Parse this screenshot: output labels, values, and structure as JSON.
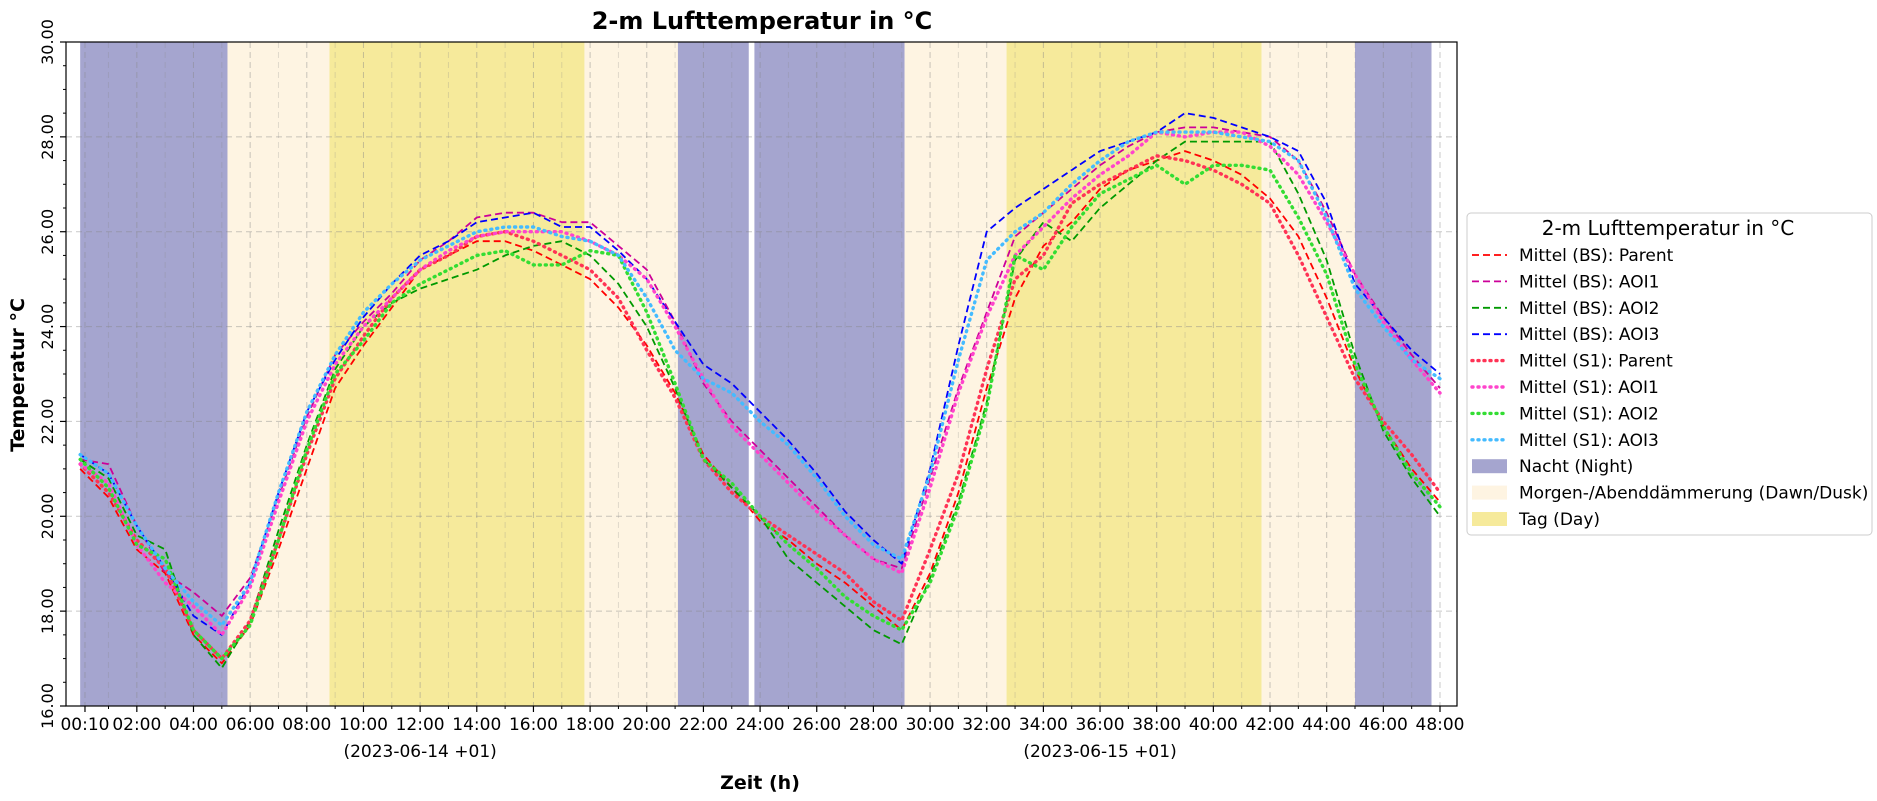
{
  "chart_data": {
    "type": "line",
    "title": "2-m Lufttemperatur in °C",
    "xlabel": "Zeit (h)",
    "ylabel": "Temperatur °C",
    "xlim": [
      -0.5,
      48.6
    ],
    "ylim": [
      16,
      30
    ],
    "y_ticks": [
      "16.00",
      "18.00",
      "20.00",
      "22.00",
      "24.00",
      "26.00",
      "28.00",
      "30.00"
    ],
    "y_tick_values": [
      16,
      18,
      20,
      22,
      24,
      26,
      28,
      30
    ],
    "x_ticks": [
      "00:10",
      "02:00",
      "04:00",
      "06:00",
      "08:00",
      "10:00",
      "12:00",
      "14:00",
      "16:00",
      "18:00",
      "20:00",
      "22:00",
      "24:00",
      "26:00",
      "28:00",
      "30:00",
      "32:00",
      "34:00",
      "36:00",
      "38:00",
      "40:00",
      "42:00",
      "44:00",
      "46:00",
      "48:00"
    ],
    "x_tick_values": [
      0.17,
      2,
      4,
      6,
      8,
      10,
      12,
      14,
      16,
      18,
      20,
      22,
      24,
      26,
      28,
      30,
      32,
      34,
      36,
      38,
      40,
      42,
      44,
      46,
      48
    ],
    "date_labels": [
      {
        "text": "(2023-06-14 +01)",
        "x": 12
      },
      {
        "text": "(2023-06-15 +01)",
        "x": 36
      }
    ],
    "grid": true,
    "legend_position": "right",
    "legend_title": "2-m Lufttemperatur in °C",
    "background_periods": [
      {
        "kind": "night",
        "start": 0,
        "end": 5.2
      },
      {
        "kind": "dawn_dusk",
        "start": 5.2,
        "end": 8.8
      },
      {
        "kind": "day",
        "start": 8.8,
        "end": 17.8
      },
      {
        "kind": "dawn_dusk",
        "start": 17.8,
        "end": 21.1
      },
      {
        "kind": "night",
        "start": 21.1,
        "end": 23.6
      },
      {
        "kind": "night",
        "start": 23.8,
        "end": 29.1
      },
      {
        "kind": "dawn_dusk",
        "start": 29.1,
        "end": 32.7
      },
      {
        "kind": "day",
        "start": 32.7,
        "end": 41.7
      },
      {
        "kind": "dawn_dusk",
        "start": 41.7,
        "end": 45.0
      },
      {
        "kind": "night",
        "start": 45.0,
        "end": 47.7
      }
    ],
    "band_styles": {
      "night": {
        "label": "Nacht (Night)",
        "color": "#4b4b9f",
        "opacity": 0.5
      },
      "dawn_dusk": {
        "label": "Morgen-/Abenddämmerung (Dawn/Dusk)",
        "color": "#fdf0d8",
        "opacity": 0.75
      },
      "day": {
        "label": "Tag (Day)",
        "color": "#f3e37a",
        "opacity": 0.75
      }
    },
    "x": [
      0,
      1,
      2,
      3,
      4,
      5,
      6,
      7,
      8,
      9,
      10,
      11,
      12,
      13,
      14,
      15,
      16,
      17,
      18,
      19,
      20,
      21,
      22,
      23,
      24,
      25,
      26,
      27,
      28,
      29,
      30,
      31,
      32,
      33,
      34,
      35,
      36,
      37,
      38,
      39,
      40,
      41,
      42,
      43,
      44,
      45,
      46,
      47,
      48
    ],
    "series": [
      {
        "name": "Mittel (BS): Parent",
        "color": "#ff0000",
        "style": "dashed",
        "values": [
          21.0,
          20.4,
          19.3,
          18.8,
          17.5,
          16.9,
          17.7,
          19.3,
          21.0,
          22.7,
          23.6,
          24.4,
          25.2,
          25.5,
          25.8,
          25.8,
          25.6,
          25.3,
          25.0,
          24.4,
          23.6,
          22.6,
          21.3,
          20.6,
          19.9,
          19.5,
          19.0,
          18.6,
          18.1,
          17.6,
          18.8,
          20.5,
          22.7,
          24.6,
          25.7,
          26.2,
          26.9,
          27.3,
          27.5,
          27.7,
          27.5,
          27.2,
          26.7,
          25.9,
          24.6,
          23.1,
          21.9,
          21.0,
          20.3
        ]
      },
      {
        "name": "Mittel (BS): AOI1",
        "color": "#cc0099",
        "style": "dashed",
        "values": [
          21.2,
          21.1,
          19.8,
          18.8,
          18.4,
          17.9,
          18.7,
          20.4,
          22.1,
          23.4,
          24.1,
          24.7,
          25.4,
          25.8,
          26.3,
          26.4,
          26.4,
          26.2,
          26.2,
          25.7,
          25.2,
          24.1,
          22.8,
          22.0,
          21.4,
          20.8,
          20.2,
          19.6,
          19.1,
          18.9,
          20.8,
          22.7,
          24.3,
          25.9,
          26.4,
          26.9,
          27.4,
          27.8,
          28.1,
          28.2,
          28.2,
          28.1,
          28.0,
          27.5,
          26.4,
          25.1,
          24.2,
          23.4,
          22.7
        ]
      },
      {
        "name": "Mittel (BS): AOI2",
        "color": "#009900",
        "style": "dashed",
        "values": [
          21.2,
          20.8,
          19.6,
          19.3,
          17.5,
          16.8,
          17.8,
          19.7,
          21.5,
          23.1,
          24.0,
          24.5,
          24.8,
          25.0,
          25.2,
          25.5,
          25.7,
          25.8,
          25.5,
          24.9,
          24.0,
          22.7,
          21.2,
          20.6,
          20.0,
          19.1,
          18.6,
          18.1,
          17.6,
          17.3,
          18.7,
          20.3,
          22.4,
          25.4,
          26.2,
          25.8,
          26.5,
          27.0,
          27.5,
          27.9,
          27.9,
          27.9,
          27.9,
          26.8,
          25.4,
          23.4,
          21.8,
          20.8,
          20.0
        ]
      },
      {
        "name": "Mittel (BS): AOI3",
        "color": "#0000ff",
        "style": "dashed",
        "values": [
          21.3,
          20.9,
          19.8,
          18.9,
          17.9,
          17.5,
          18.6,
          20.5,
          22.2,
          23.3,
          24.2,
          24.9,
          25.5,
          25.8,
          26.2,
          26.3,
          26.4,
          26.1,
          26.1,
          25.6,
          25.0,
          24.1,
          23.2,
          22.8,
          22.2,
          21.6,
          20.9,
          20.1,
          19.5,
          19.0,
          21.0,
          23.6,
          26.0,
          26.5,
          26.9,
          27.3,
          27.7,
          27.9,
          28.1,
          28.5,
          28.4,
          28.2,
          28.0,
          27.7,
          26.6,
          24.9,
          24.2,
          23.5,
          23.0
        ]
      },
      {
        "name": "Mittel (S1): Parent",
        "color": "#ff3355",
        "style": "dotted",
        "values": [
          21.1,
          20.5,
          19.5,
          18.9,
          17.6,
          17.0,
          17.8,
          19.5,
          21.3,
          22.9,
          23.8,
          24.6,
          25.2,
          25.5,
          25.9,
          26.0,
          25.8,
          25.5,
          25.2,
          24.6,
          23.5,
          22.5,
          21.2,
          20.5,
          20.0,
          19.6,
          19.2,
          18.8,
          18.2,
          17.8,
          19.3,
          20.9,
          23.1,
          25.0,
          25.5,
          26.6,
          27.0,
          27.3,
          27.6,
          27.5,
          27.3,
          27.0,
          26.6,
          25.5,
          24.2,
          22.9,
          22.0,
          21.3,
          20.5
        ]
      },
      {
        "name": "Mittel (S1): AOI1",
        "color": "#ff44cc",
        "style": "dotted",
        "values": [
          21.1,
          20.7,
          19.4,
          18.6,
          18.1,
          17.5,
          18.5,
          20.3,
          22.0,
          23.2,
          24.0,
          24.6,
          25.2,
          25.6,
          25.9,
          26.0,
          26.0,
          26.0,
          25.8,
          25.5,
          25.0,
          24.0,
          22.9,
          21.9,
          21.3,
          20.7,
          20.1,
          19.6,
          19.1,
          18.8,
          20.6,
          22.6,
          24.2,
          25.5,
          26.1,
          26.7,
          27.2,
          27.6,
          28.1,
          28.0,
          28.1,
          28.1,
          27.8,
          27.2,
          26.2,
          25.1,
          24.1,
          23.3,
          22.6
        ]
      },
      {
        "name": "Mittel (S1): AOI2",
        "color": "#33dd33",
        "style": "dotted",
        "values": [
          21.2,
          20.6,
          19.4,
          19.1,
          17.6,
          17.0,
          17.7,
          19.5,
          21.4,
          23.0,
          23.7,
          24.5,
          24.9,
          25.2,
          25.5,
          25.6,
          25.3,
          25.3,
          25.6,
          25.5,
          24.3,
          22.8,
          21.2,
          20.7,
          20.0,
          19.4,
          18.9,
          18.3,
          17.9,
          17.6,
          18.6,
          20.2,
          22.3,
          25.5,
          25.2,
          26.1,
          26.8,
          27.1,
          27.4,
          27.0,
          27.4,
          27.4,
          27.3,
          26.3,
          25.1,
          23.2,
          21.9,
          20.9,
          20.2
        ]
      },
      {
        "name": "Mittel (S1): AOI3",
        "color": "#44bbff",
        "style": "dotted",
        "values": [
          21.3,
          20.9,
          19.8,
          18.9,
          18.2,
          17.7,
          18.6,
          20.5,
          22.2,
          23.4,
          24.3,
          24.9,
          25.4,
          25.7,
          26.0,
          26.1,
          26.1,
          25.9,
          25.8,
          25.5,
          24.6,
          23.5,
          22.9,
          22.6,
          22.0,
          21.5,
          20.8,
          20.0,
          19.4,
          19.1,
          20.9,
          23.3,
          25.4,
          26.0,
          26.4,
          27.0,
          27.5,
          27.9,
          28.1,
          28.1,
          28.1,
          28.0,
          27.9,
          27.5,
          26.3,
          24.8,
          24.0,
          23.3,
          22.9
        ]
      }
    ]
  }
}
